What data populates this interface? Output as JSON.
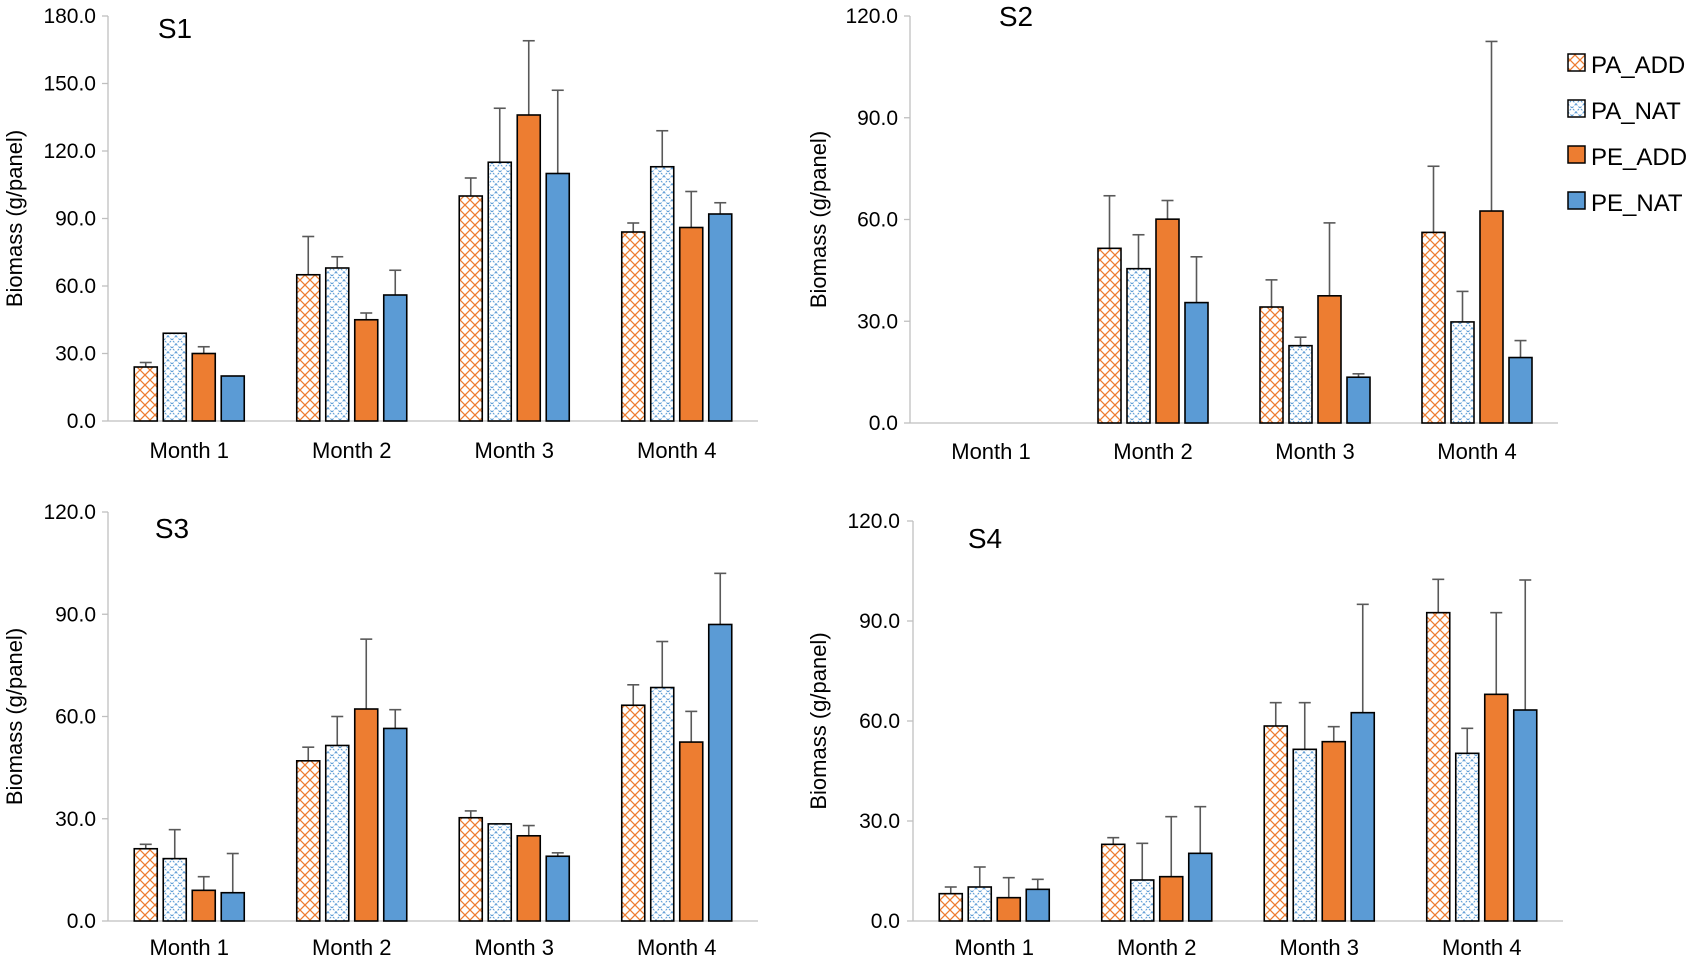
{
  "chart_data": [
    {
      "type": "bar",
      "title": "S1",
      "ylabel": "Biomass (g/panel)",
      "xlabel": "",
      "ylim": [
        0,
        180
      ],
      "yticks": [
        "0.0",
        "30.0",
        "60.0",
        "90.0",
        "120.0",
        "150.0",
        "180.0"
      ],
      "categories": [
        "Month 1",
        "Month 2",
        "Month 3",
        "Month 4"
      ],
      "series": [
        {
          "name": "PA_ADD",
          "values": [
            24,
            65,
            100,
            84
          ],
          "errors": [
            2,
            17,
            8,
            4
          ]
        },
        {
          "name": "PA_NAT",
          "values": [
            39,
            68,
            115,
            113
          ],
          "errors": [
            0,
            5,
            24,
            16
          ]
        },
        {
          "name": "PE_ADD",
          "values": [
            30,
            45,
            136,
            86
          ],
          "errors": [
            3,
            3,
            33,
            16
          ]
        },
        {
          "name": "PE_NAT",
          "values": [
            20,
            56,
            110,
            92
          ],
          "errors": [
            0,
            11,
            37,
            5
          ]
        }
      ]
    },
    {
      "type": "bar",
      "title": "S2",
      "ylabel": "Biomass (g/panel)",
      "xlabel": "",
      "ylim": [
        0,
        120
      ],
      "yticks": [
        "0.0",
        "30.0",
        "60.0",
        "90.0",
        "120.0"
      ],
      "categories": [
        "Month 1",
        "Month 2",
        "Month 3",
        "Month 4"
      ],
      "series": [
        {
          "name": "PA_ADD",
          "values": [
            null,
            51.5,
            34.2,
            56.2
          ],
          "errors": [
            null,
            15.5,
            8.0,
            19.5
          ]
        },
        {
          "name": "PA_NAT",
          "values": [
            null,
            45.5,
            22.8,
            29.8
          ],
          "errors": [
            null,
            10.0,
            2.5,
            9.0
          ]
        },
        {
          "name": "PE_ADD",
          "values": [
            null,
            60.1,
            37.5,
            62.5
          ],
          "errors": [
            null,
            5.5,
            21.5,
            50.0
          ]
        },
        {
          "name": "PE_NAT",
          "values": [
            null,
            35.5,
            13.5,
            19.3
          ],
          "errors": [
            null,
            13.5,
            1.0,
            5.0
          ]
        }
      ]
    },
    {
      "type": "bar",
      "title": "S3",
      "ylabel": "Biomass (g/panel)",
      "xlabel": "",
      "ylim": [
        0,
        120
      ],
      "yticks": [
        "0.0",
        "30.0",
        "60.0",
        "90.0",
        "120.0"
      ],
      "categories": [
        "Month 1",
        "Month 2",
        "Month 3",
        "Month 4"
      ],
      "series": [
        {
          "name": "PA_ADD",
          "values": [
            21.2,
            47,
            30.3,
            63.3
          ],
          "errors": [
            1.3,
            4,
            2,
            6
          ]
        },
        {
          "name": "PA_NAT",
          "values": [
            18.3,
            51.5,
            28.5,
            68.5
          ],
          "errors": [
            8.5,
            8.5,
            0,
            13.5
          ]
        },
        {
          "name": "PE_ADD",
          "values": [
            9,
            62.2,
            25,
            52.5
          ],
          "errors": [
            4,
            20.5,
            3,
            9
          ]
        },
        {
          "name": "PE_NAT",
          "values": [
            8.3,
            56.5,
            19,
            87
          ],
          "errors": [
            11.5,
            5.5,
            1,
            15
          ]
        }
      ]
    },
    {
      "type": "bar",
      "title": "S4",
      "ylabel": "Biomass (g/panel)",
      "xlabel": "",
      "ylim": [
        0,
        120
      ],
      "yticks": [
        "0.0",
        "30.0",
        "60.0",
        "90.0",
        "120.0"
      ],
      "categories": [
        "Month 1",
        "Month 2",
        "Month 3",
        "Month 4"
      ],
      "series": [
        {
          "name": "PA_ADD",
          "values": [
            8.2,
            23,
            58.5,
            92.5
          ],
          "errors": [
            2,
            2,
            7,
            10
          ]
        },
        {
          "name": "PA_NAT",
          "values": [
            10.2,
            12.3,
            51.5,
            50.3
          ],
          "errors": [
            6,
            11,
            14,
            7.5
          ]
        },
        {
          "name": "PE_ADD",
          "values": [
            7,
            13.3,
            53.8,
            68
          ],
          "errors": [
            6,
            18,
            4.5,
            24.5
          ]
        },
        {
          "name": "PE_NAT",
          "values": [
            9.5,
            20.3,
            62.5,
            63.3
          ],
          "errors": [
            3,
            14,
            32.5,
            39
          ]
        }
      ]
    }
  ],
  "legend": {
    "position": "top-right",
    "items": [
      {
        "label": "PA_ADD",
        "style": "hatch",
        "color": "#ED7D31"
      },
      {
        "label": "PA_NAT",
        "style": "hatch",
        "color": "#5B9BD5"
      },
      {
        "label": "PE_ADD",
        "style": "solid",
        "color": "#ED7D31"
      },
      {
        "label": "PE_NAT",
        "style": "solid",
        "color": "#5B9BD5"
      }
    ]
  },
  "colors": {
    "orange": "#ED7D31",
    "blue": "#5B9BD5",
    "axis": "#BFBFBF",
    "error_bar": "#595959"
  }
}
